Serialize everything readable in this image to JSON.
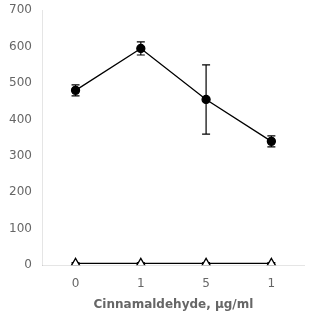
{
  "chart_data": {
    "type": "line",
    "xlabel": "Cinnamaldehyde, μg/ml",
    "categories": [
      "0",
      "1",
      "5",
      "1"
    ],
    "series": [
      {
        "color": "#000000",
        "marker": "circle",
        "line_style": "solid",
        "values": [
          480,
          595,
          455,
          340
        ],
        "errors": [
          15,
          18,
          95,
          15
        ]
      },
      {
        "color": "#000000",
        "marker": "triangle-open",
        "line_style": "solid",
        "values": [
          5,
          5,
          5,
          5
        ],
        "errors": [
          2,
          2,
          2,
          2
        ]
      }
    ],
    "ylim": [
      0,
      700
    ],
    "yticks": [
      0,
      100,
      200,
      300,
      400,
      500,
      600,
      700
    ],
    "grid": false
  }
}
